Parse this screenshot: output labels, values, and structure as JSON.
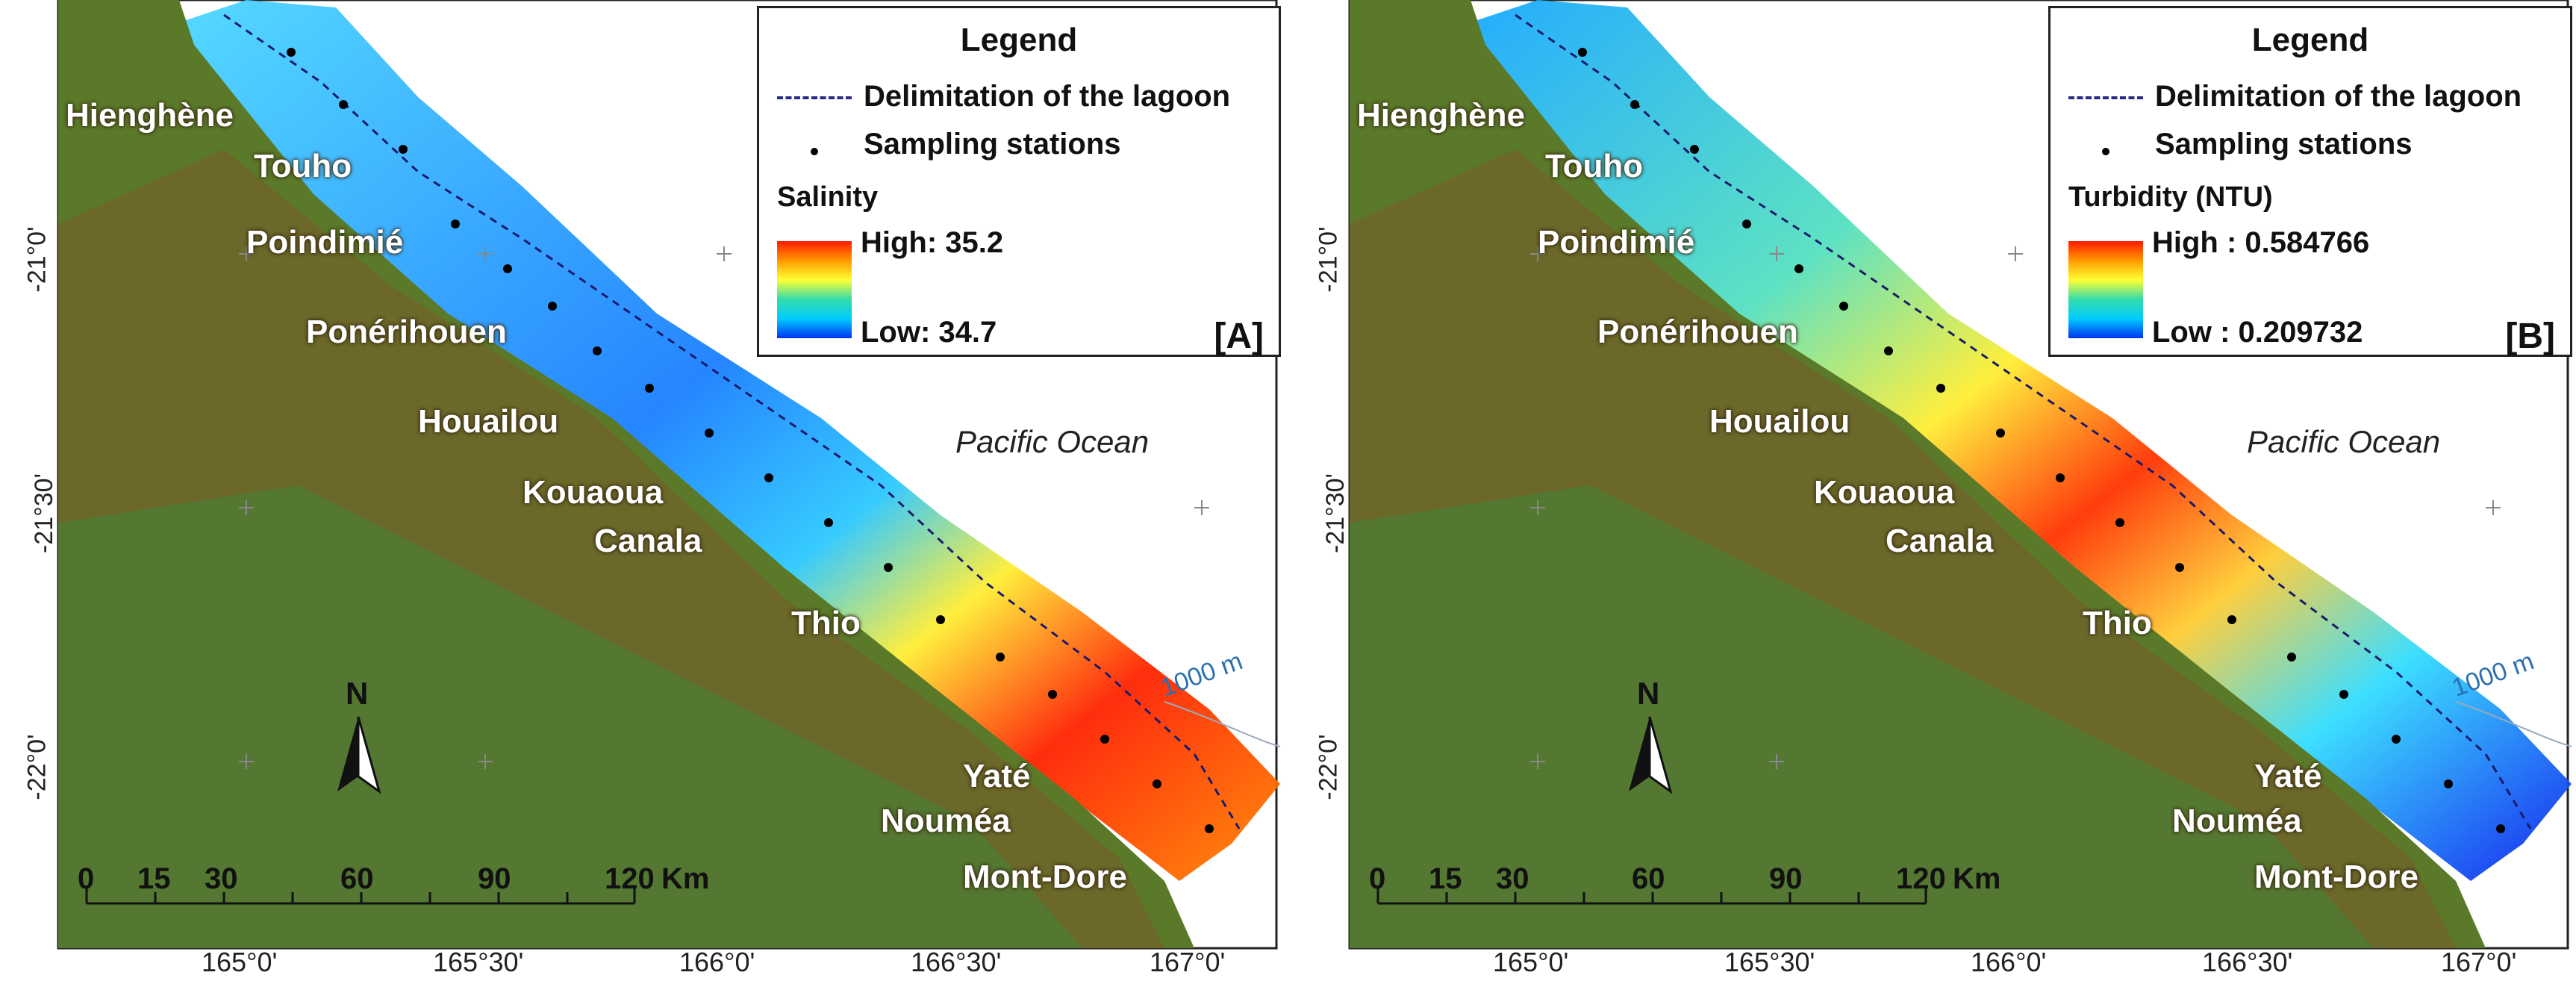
{
  "panels": [
    {
      "id": "A",
      "legend": {
        "title": "Legend",
        "line_label": "Delimitation of the lagoon",
        "dot_label": "Sampling stations",
        "variable": "Salinity",
        "high": "High: 35.2",
        "low": "Low: 34.7"
      },
      "panel_label": "[A]",
      "field": {
        "mid": "#19b0ff",
        "south": "#ff1a00",
        "north": "#19a8ff"
      }
    },
    {
      "id": "B",
      "legend": {
        "title": "Legend",
        "line_label": "Delimitation of the lagoon",
        "dot_label": "Sampling stations",
        "variable": "Turbidity (NTU)",
        "high": "High : 0.584766",
        "low": "Low : 0.209732"
      },
      "panel_label": "[B]",
      "field": {
        "mid": "#ff3300",
        "south": "#0a1aee",
        "north": "#19a8ff"
      }
    }
  ],
  "towns": [
    "Hienghène",
    "Touho",
    "Poindimié",
    "Ponérihouen",
    "Houailou",
    "Kouaoua",
    "Canala",
    "Thio",
    "Yaté",
    "Nouméa",
    "Mont-Dore"
  ],
  "ocean_label": "Pacific Ocean",
  "isobath_label": "1000 m",
  "north_label": "N",
  "lat_labels": [
    "-21°0'",
    "-21°30'",
    "-22°0'"
  ],
  "lon_labels": [
    "165°0'",
    "165°30'",
    "166°0'",
    "166°30'",
    "167°0'"
  ],
  "scale": {
    "ticks": [
      "0",
      "15",
      "30",
      "60",
      "90",
      "120"
    ],
    "unit": "Km"
  }
}
